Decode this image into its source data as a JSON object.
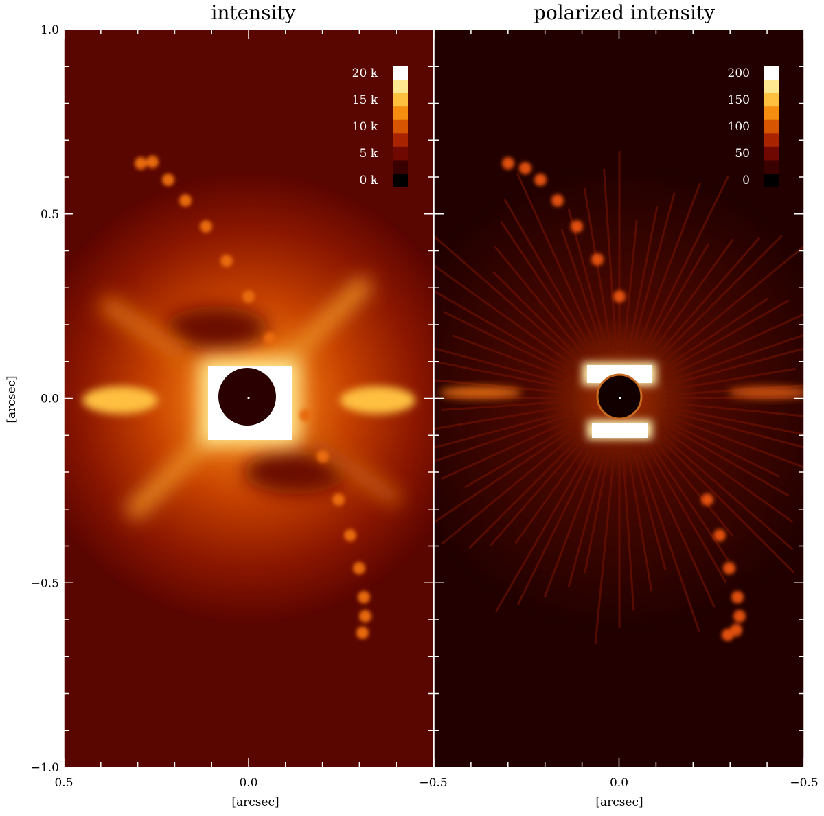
{
  "figure": {
    "panels": [
      {
        "title": "intensity",
        "colorbar": {
          "labels": [
            "20 k",
            "15 k",
            "10 k",
            "5 k",
            "0 k"
          ],
          "values": [
            20000,
            15000,
            10000,
            5000,
            0
          ]
        },
        "x_tick_labels": [
          "0.5",
          "0.0",
          "−0.5"
        ],
        "x_ticks": [
          0.5,
          0.0,
          -0.5
        ],
        "xlabel": "[arcsec]"
      },
      {
        "title": "polarized intensity",
        "colorbar": {
          "labels": [
            "200",
            "150",
            "100",
            "50",
            "0"
          ],
          "values": [
            200,
            150,
            100,
            50,
            0
          ]
        },
        "x_tick_labels": [
          "0.0",
          "−0.5"
        ],
        "x_ticks": [
          0.0,
          -0.5
        ],
        "xlabel": "[arcsec]"
      }
    ],
    "y_tick_labels": [
      "1.0",
      "0.5",
      "0.0",
      "−0.5",
      "−1.0"
    ],
    "y_ticks": [
      1.0,
      0.5,
      0.0,
      -0.5,
      -1.0
    ],
    "ylabel": "[arcsec]",
    "colormap": [
      "#000000",
      "#3a0000",
      "#6e0800",
      "#a82400",
      "#d85500",
      "#f58e10",
      "#ffc040",
      "#ffe890",
      "#ffffff"
    ]
  }
}
